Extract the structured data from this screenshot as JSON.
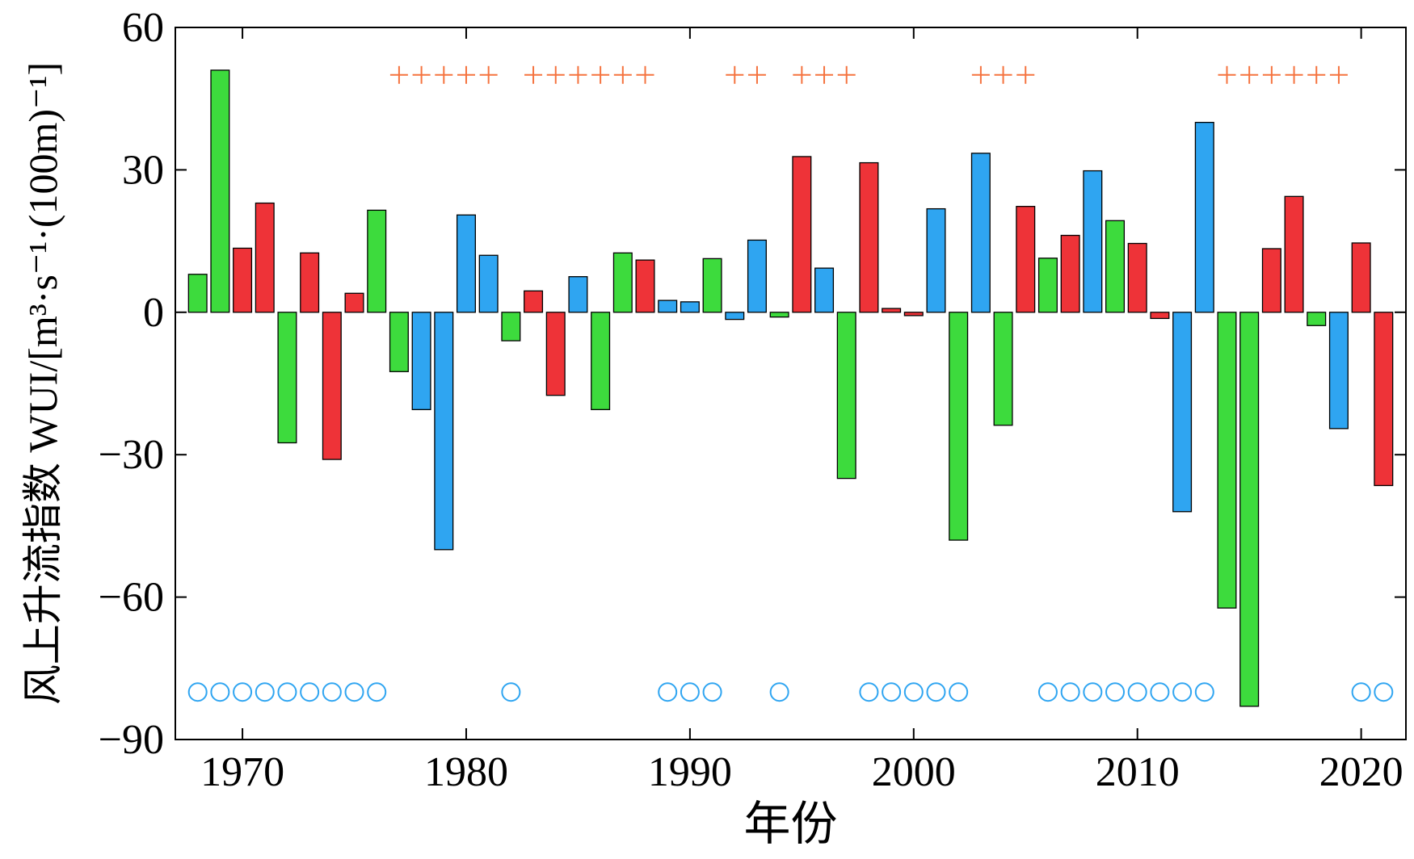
{
  "chart_data": {
    "type": "bar",
    "xlabel": "年份",
    "ylabel": "风上升流指数 WUI/[m³·s⁻¹·(100m)⁻¹]",
    "xlim": [
      1967,
      2022
    ],
    "ylim": [
      -90,
      60
    ],
    "xticks": [
      1970,
      1980,
      1990,
      2000,
      2010,
      2020
    ],
    "yticks": [
      60,
      30,
      0,
      -30,
      -60,
      -90
    ],
    "ytick_labels": [
      "60",
      "30",
      "0",
      "−30",
      "−60",
      "−90"
    ],
    "grid": false,
    "colors": {
      "green": "#3ddb3d",
      "red": "#ee3338",
      "blue": "#2fa5f1",
      "plus": "#f5733f",
      "circle": "#2fa5f1"
    },
    "bars": [
      {
        "x": 1968,
        "value": 8,
        "color": "green"
      },
      {
        "x": 1969,
        "value": 51,
        "color": "green"
      },
      {
        "x": 1970,
        "value": 13.5,
        "color": "red"
      },
      {
        "x": 1971,
        "value": 23,
        "color": "red"
      },
      {
        "x": 1972,
        "value": -27.5,
        "color": "green"
      },
      {
        "x": 1973,
        "value": 12.5,
        "color": "red"
      },
      {
        "x": 1974,
        "value": -31,
        "color": "red"
      },
      {
        "x": 1975,
        "value": 4,
        "color": "red"
      },
      {
        "x": 1976,
        "value": 21.5,
        "color": "green"
      },
      {
        "x": 1977,
        "value": -12.5,
        "color": "green"
      },
      {
        "x": 1978,
        "value": -20.5,
        "color": "blue"
      },
      {
        "x": 1979,
        "value": -50,
        "color": "blue"
      },
      {
        "x": 1980,
        "value": 20.5,
        "color": "blue"
      },
      {
        "x": 1981,
        "value": 12,
        "color": "blue"
      },
      {
        "x": 1982,
        "value": -6,
        "color": "green"
      },
      {
        "x": 1983,
        "value": 4.5,
        "color": "red"
      },
      {
        "x": 1984,
        "value": -17.5,
        "color": "red"
      },
      {
        "x": 1985,
        "value": 7.5,
        "color": "blue"
      },
      {
        "x": 1986,
        "value": -20.5,
        "color": "green"
      },
      {
        "x": 1987,
        "value": 12.5,
        "color": "green"
      },
      {
        "x": 1988,
        "value": 11,
        "color": "red"
      },
      {
        "x": 1989,
        "value": 2.5,
        "color": "blue"
      },
      {
        "x": 1990,
        "value": 2.2,
        "color": "blue"
      },
      {
        "x": 1991,
        "value": 11.3,
        "color": "green"
      },
      {
        "x": 1992,
        "value": -1.5,
        "color": "blue"
      },
      {
        "x": 1993,
        "value": 15.2,
        "color": "blue"
      },
      {
        "x": 1994,
        "value": -1,
        "color": "green"
      },
      {
        "x": 1995,
        "value": 32.8,
        "color": "red"
      },
      {
        "x": 1996,
        "value": 9.3,
        "color": "blue"
      },
      {
        "x": 1997,
        "value": -35,
        "color": "green"
      },
      {
        "x": 1998,
        "value": 31.5,
        "color": "red"
      },
      {
        "x": 1999,
        "value": 0.8,
        "color": "red"
      },
      {
        "x": 2000,
        "value": -0.7,
        "color": "red"
      },
      {
        "x": 2001,
        "value": 21.8,
        "color": "blue"
      },
      {
        "x": 2002,
        "value": -48,
        "color": "green"
      },
      {
        "x": 2003,
        "value": 33.5,
        "color": "blue"
      },
      {
        "x": 2004,
        "value": -23.8,
        "color": "green"
      },
      {
        "x": 2005,
        "value": 22.3,
        "color": "red"
      },
      {
        "x": 2006,
        "value": 11.4,
        "color": "green"
      },
      {
        "x": 2007,
        "value": 16.2,
        "color": "red"
      },
      {
        "x": 2008,
        "value": 29.8,
        "color": "blue"
      },
      {
        "x": 2009,
        "value": 19.3,
        "color": "green"
      },
      {
        "x": 2010,
        "value": 14.5,
        "color": "red"
      },
      {
        "x": 2011,
        "value": -1.3,
        "color": "red"
      },
      {
        "x": 2012,
        "value": -42,
        "color": "blue"
      },
      {
        "x": 2013,
        "value": 40,
        "color": "blue"
      },
      {
        "x": 2014,
        "value": -62.3,
        "color": "green"
      },
      {
        "x": 2015,
        "value": -83,
        "color": "green"
      },
      {
        "x": 2016,
        "value": 13.4,
        "color": "red"
      },
      {
        "x": 2017,
        "value": 24.4,
        "color": "red"
      },
      {
        "x": 2018,
        "value": -2.8,
        "color": "green"
      },
      {
        "x": 2019,
        "value": -24.5,
        "color": "blue"
      },
      {
        "x": 2020,
        "value": 14.6,
        "color": "red"
      },
      {
        "x": 2021,
        "value": -36.5,
        "color": "red"
      }
    ],
    "plus_markers": {
      "y": 50,
      "symbol": "+",
      "years": [
        1977,
        1978,
        1979,
        1980,
        1981,
        1983,
        1984,
        1985,
        1986,
        1987,
        1988,
        1992,
        1993,
        1995,
        1996,
        1997,
        2003,
        2004,
        2005,
        2014,
        2015,
        2016,
        2017,
        2018,
        2019
      ]
    },
    "circle_markers": {
      "y": -80,
      "years": [
        1968,
        1969,
        1970,
        1971,
        1972,
        1973,
        1974,
        1975,
        1976,
        1982,
        1989,
        1990,
        1991,
        1994,
        1998,
        1999,
        2000,
        2001,
        2002,
        2006,
        2007,
        2008,
        2009,
        2010,
        2011,
        2012,
        2013,
        2020,
        2021
      ]
    }
  }
}
